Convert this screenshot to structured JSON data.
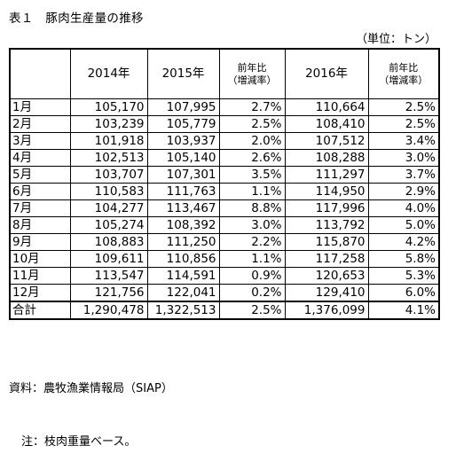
{
  "title": "表１　豚肉生産量の推移",
  "unit": "（単位：トン）",
  "headers": {
    "y2014": "2014年",
    "y2015": "2015年",
    "ratio1_line1": "前年比",
    "ratio1_line2": "（増減率）",
    "y2016": "2016年",
    "ratio2_line1": "前年比",
    "ratio2_line2": "（増減率）"
  },
  "rows": [
    {
      "month": "1月",
      "v2014": "105,170",
      "v2015": "107,995",
      "r2015": "2.7%",
      "v2016": "110,664",
      "r2016": "2.5%"
    },
    {
      "month": "2月",
      "v2014": "103,239",
      "v2015": "105,779",
      "r2015": "2.5%",
      "v2016": "108,410",
      "r2016": "2.5%"
    },
    {
      "month": "3月",
      "v2014": "101,918",
      "v2015": "103,937",
      "r2015": "2.0%",
      "v2016": "107,512",
      "r2016": "3.4%"
    },
    {
      "month": "4月",
      "v2014": "102,513",
      "v2015": "105,140",
      "r2015": "2.6%",
      "v2016": "108,288",
      "r2016": "3.0%"
    },
    {
      "month": "5月",
      "v2014": "103,707",
      "v2015": "107,301",
      "r2015": "3.5%",
      "v2016": "111,297",
      "r2016": "3.7%"
    },
    {
      "month": "6月",
      "v2014": "110,583",
      "v2015": "111,763",
      "r2015": "1.1%",
      "v2016": "114,950",
      "r2016": "2.9%"
    },
    {
      "month": "7月",
      "v2014": "104,277",
      "v2015": "113,467",
      "r2015": "8.8%",
      "v2016": "117,996",
      "r2016": "4.0%"
    },
    {
      "month": "8月",
      "v2014": "105,274",
      "v2015": "108,392",
      "r2015": "3.0%",
      "v2016": "113,792",
      "r2016": "5.0%"
    },
    {
      "month": "9月",
      "v2014": "108,883",
      "v2015": "111,250",
      "r2015": "2.2%",
      "v2016": "115,870",
      "r2016": "4.2%"
    },
    {
      "month": "10月",
      "v2014": "109,611",
      "v2015": "110,856",
      "r2015": "1.1%",
      "v2016": "117,258",
      "r2016": "5.8%"
    },
    {
      "month": "11月",
      "v2014": "113,547",
      "v2015": "114,591",
      "r2015": "0.9%",
      "v2016": "120,653",
      "r2016": "5.3%"
    },
    {
      "month": "12月",
      "v2014": "121,756",
      "v2015": "122,041",
      "r2015": "0.2%",
      "v2016": "129,410",
      "r2016": "6.0%"
    }
  ],
  "total": {
    "label": "合計",
    "v2014": "1,290,478",
    "v2015": "1,322,513",
    "r2015": "2.5%",
    "v2016": "1,376,099",
    "r2016": "4.1%"
  },
  "notes": {
    "source": "資料：農牧漁業情報局（SIAP）",
    "note": "注：枝肉重量ベース。"
  }
}
